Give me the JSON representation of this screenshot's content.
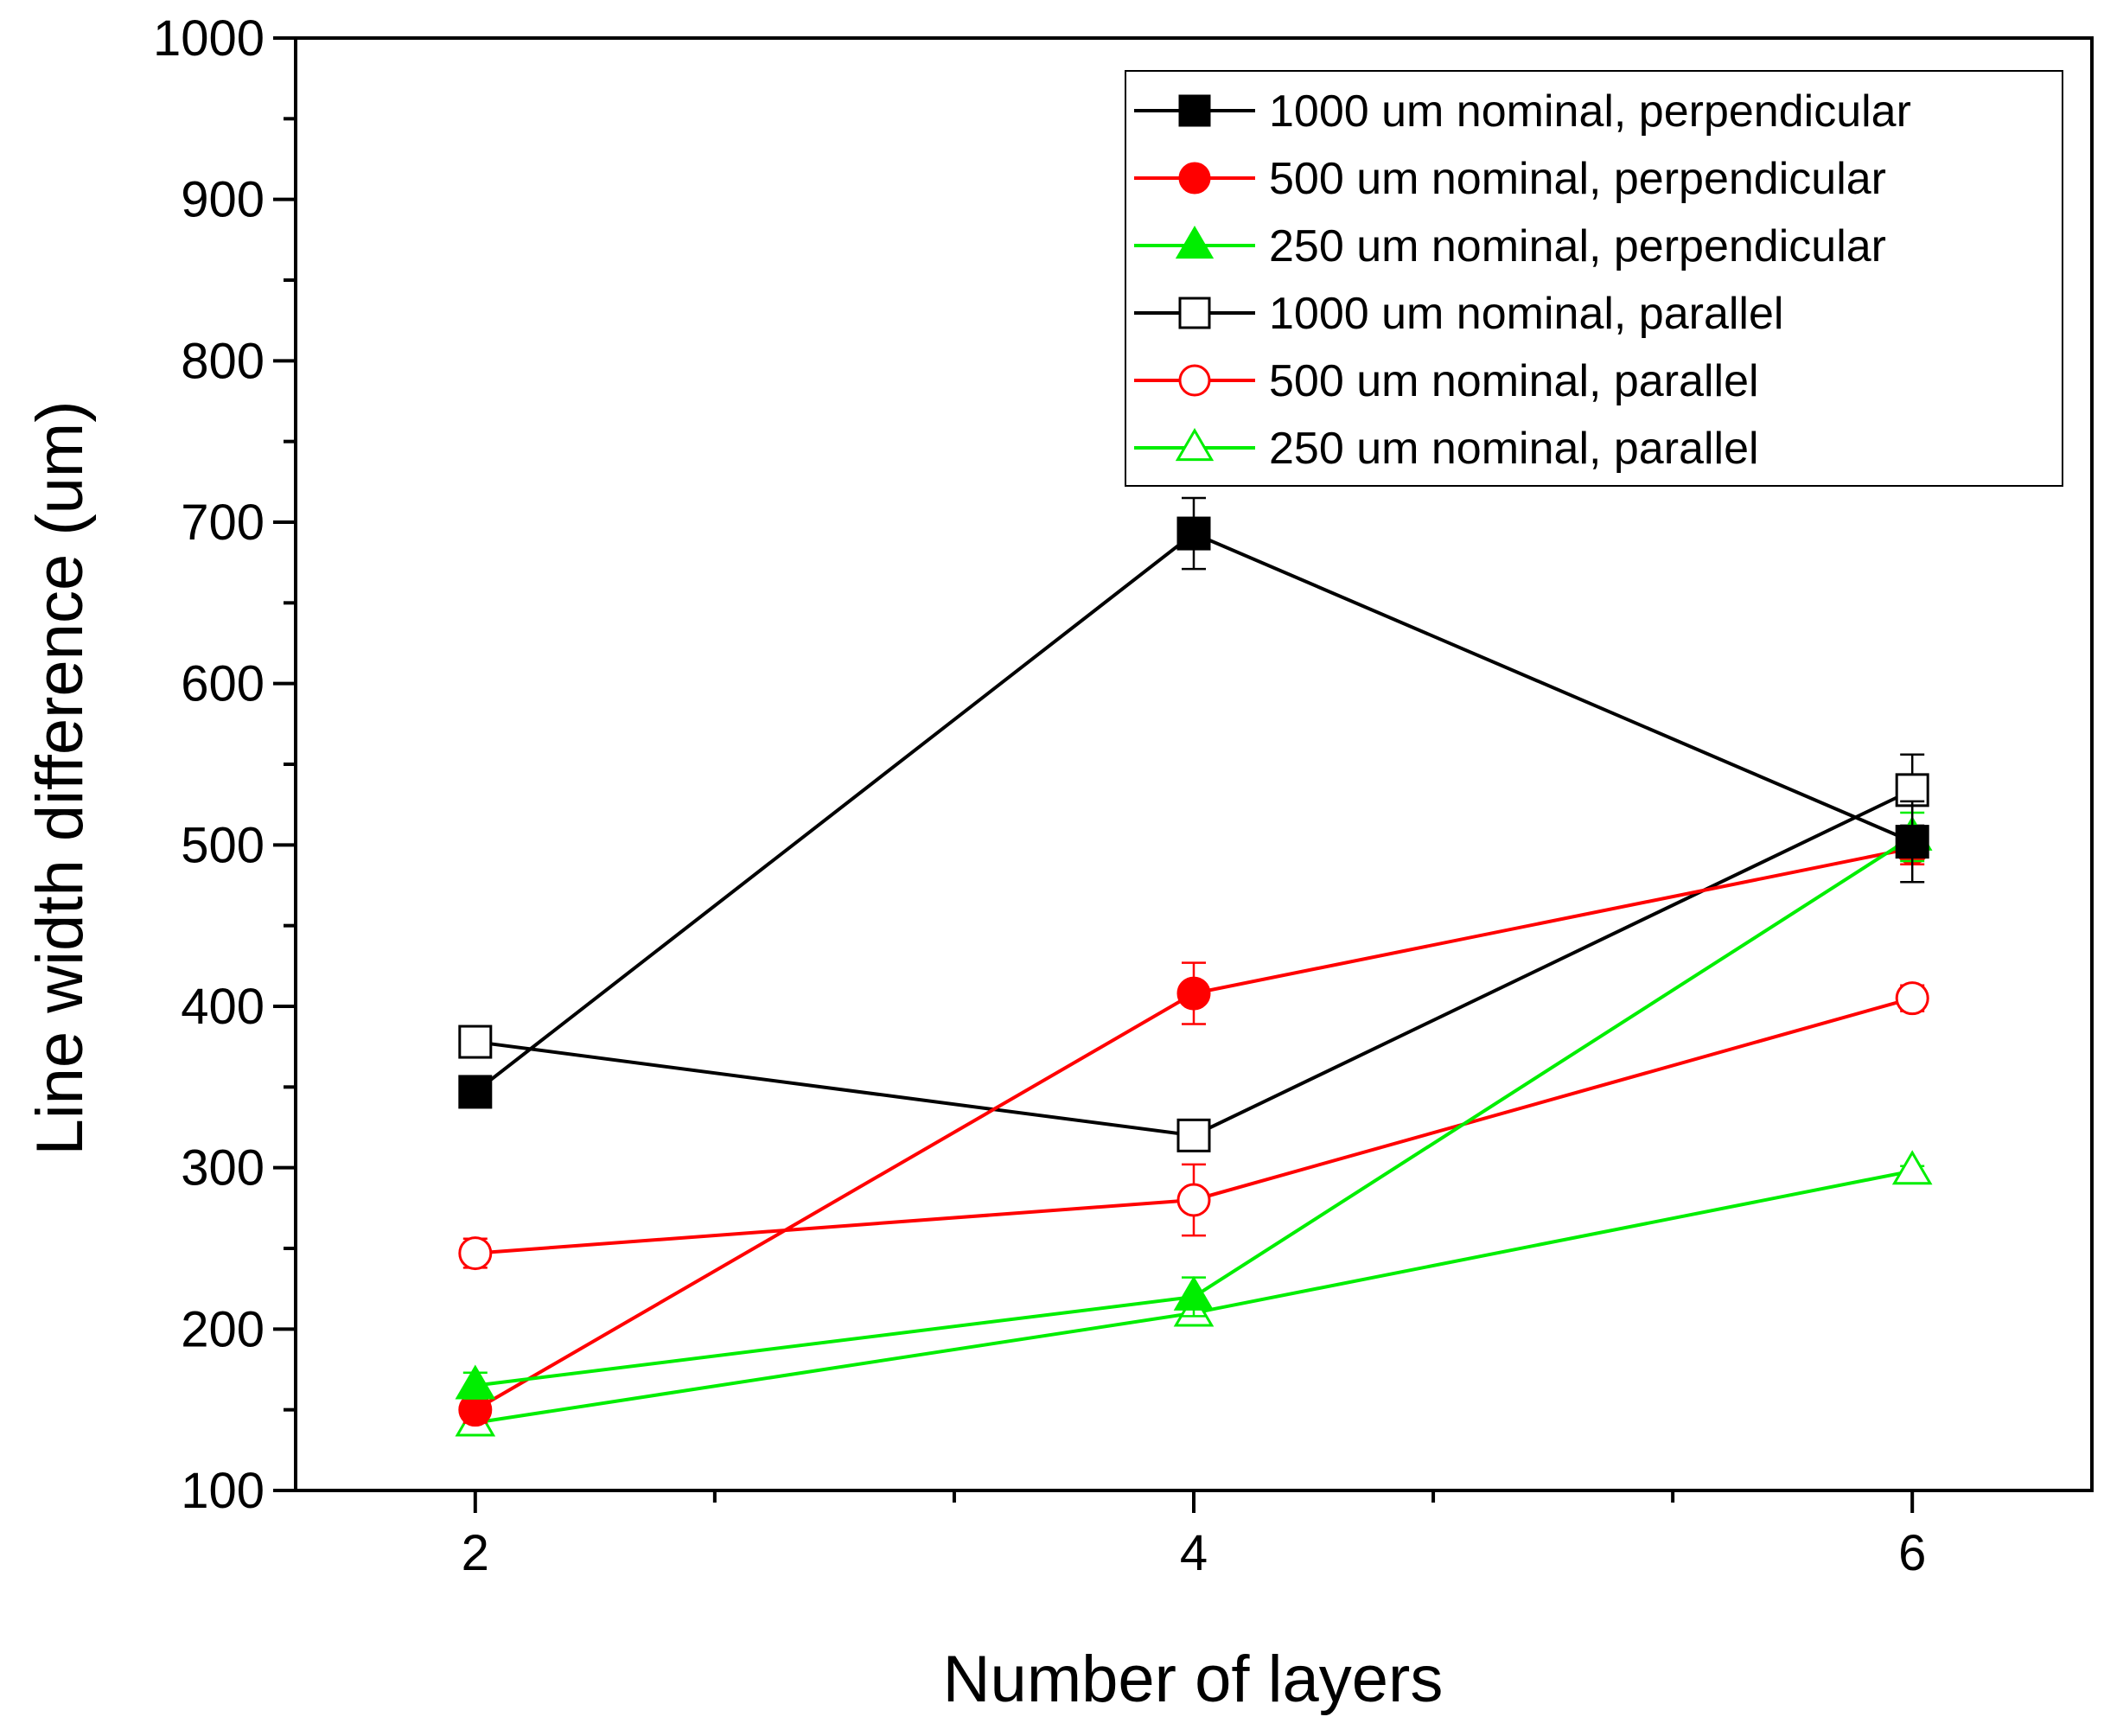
{
  "chart_data": {
    "type": "line",
    "xlabel": "Number of layers",
    "ylabel": "Line width difference (um)",
    "x": [
      2,
      4,
      6
    ],
    "xlim": [
      1.5,
      6.5
    ],
    "ylim": [
      100,
      1000
    ],
    "xticks": [
      "2",
      "4",
      "6"
    ],
    "yticks": [
      "100",
      "200",
      "300",
      "400",
      "500",
      "600",
      "700",
      "800",
      "900",
      "1000"
    ],
    "legend_position": "top-right",
    "series": [
      {
        "name": "1000 um nominal, perpendicular",
        "color": "#000000",
        "marker": "square",
        "filled": true,
        "values": [
          347,
          693,
          502
        ],
        "errors": [
          7,
          22,
          25
        ]
      },
      {
        "name": "500 um nominal, perpendicular",
        "color": "#ff0000",
        "marker": "circle",
        "filled": true,
        "values": [
          150,
          408,
          498
        ],
        "errors": [
          8,
          19,
          10
        ]
      },
      {
        "name": "250 um nominal, perpendicular",
        "color": "#00ee00",
        "marker": "triangle",
        "filled": true,
        "values": [
          165,
          220,
          505
        ],
        "errors": [
          8,
          12,
          15
        ]
      },
      {
        "name": "1000 um nominal, parallel",
        "color": "#000000",
        "marker": "square",
        "filled": false,
        "values": [
          378,
          320,
          534
        ],
        "errors": [
          5,
          8,
          22
        ]
      },
      {
        "name": "500 um nominal, parallel",
        "color": "#ff0000",
        "marker": "circle",
        "filled": false,
        "values": [
          247,
          280,
          405
        ],
        "errors": [
          9,
          22,
          8
        ]
      },
      {
        "name": "250 um nominal, parallel",
        "color": "#00ee00",
        "marker": "triangle",
        "filled": false,
        "values": [
          142,
          210,
          298
        ],
        "errors": [
          3,
          5,
          3
        ]
      }
    ]
  }
}
